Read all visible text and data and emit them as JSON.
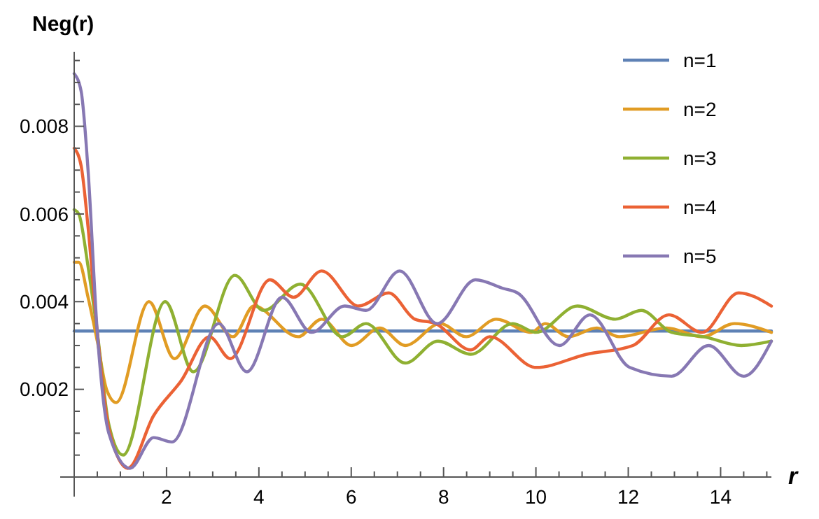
{
  "chart_data": {
    "type": "line",
    "ylabel": "Neg(r)",
    "xlabel": "r",
    "legend": "top right",
    "line_style": "solid",
    "xlim": [
      0,
      15.1
    ],
    "ylim": [
      0,
      0.0097
    ],
    "xticks": [
      {
        "value": 0.5,
        "label": null
      },
      {
        "value": 1,
        "label": null
      },
      {
        "value": 1.5,
        "label": null
      },
      2,
      {
        "value": 2.5,
        "label": null
      },
      {
        "value": 3,
        "label": null
      },
      {
        "value": 3.5,
        "label": null
      },
      4,
      {
        "value": 4.5,
        "label": null
      },
      {
        "value": 5,
        "label": null
      },
      {
        "value": 5.5,
        "label": null
      },
      6,
      {
        "value": 6.5,
        "label": null
      },
      {
        "value": 7,
        "label": null
      },
      {
        "value": 7.5,
        "label": null
      },
      8,
      {
        "value": 8.5,
        "label": null
      },
      {
        "value": 9,
        "label": null
      },
      {
        "value": 9.5,
        "label": null
      },
      10,
      {
        "value": 10.5,
        "label": null
      },
      {
        "value": 11,
        "label": null
      },
      {
        "value": 11.5,
        "label": null
      },
      12,
      {
        "value": 12.5,
        "label": null
      },
      {
        "value": 13,
        "label": null
      },
      {
        "value": 13.5,
        "label": null
      },
      14,
      {
        "value": 14.5,
        "label": null
      },
      {
        "value": 15,
        "label": null
      }
    ],
    "yticks": [
      {
        "value": 0.0005,
        "label": null
      },
      {
        "value": 0.001,
        "label": null
      },
      {
        "value": 0.0015,
        "label": null
      },
      0.002,
      {
        "value": 0.0025,
        "label": null
      },
      {
        "value": 0.003,
        "label": null
      },
      {
        "value": 0.0035,
        "label": null
      },
      0.004,
      {
        "value": 0.0045,
        "label": null
      },
      {
        "value": 0.005,
        "label": null
      },
      {
        "value": 0.0055,
        "label": null
      },
      0.006,
      {
        "value": 0.0065,
        "label": null
      },
      {
        "value": 0.007,
        "label": null
      },
      {
        "value": 0.0075,
        "label": null
      },
      0.008,
      {
        "value": 0.0085,
        "label": null
      },
      {
        "value": 0.009,
        "label": null
      },
      {
        "value": 0.0095,
        "label": null
      }
    ],
    "series": [
      {
        "name": "n=1",
        "color": "#5e81b5",
        "x": [
          0,
          15.1
        ],
        "values": [
          0.00333,
          0.00333
        ]
      },
      {
        "name": "n=2",
        "color": "#e19c24",
        "x": [
          0,
          0.1,
          0.3,
          0.5,
          0.7,
          0.91,
          1.62,
          2.17,
          2.83,
          3.44,
          3.89,
          4.85,
          5.36,
          6.01,
          6.62,
          7.17,
          7.93,
          8.49,
          9.14,
          9.9,
          10.2,
          10.7,
          11.32,
          11.8,
          12.83,
          13.6,
          14.3,
          15.1
        ],
        "values": [
          0.0049,
          0.0049,
          0.0041,
          0.0031,
          0.002,
          0.0017,
          0.004,
          0.0027,
          0.0039,
          0.0032,
          0.0039,
          0.0032,
          0.0036,
          0.003,
          0.0034,
          0.003,
          0.0035,
          0.0032,
          0.0036,
          0.0033,
          0.0035,
          0.0032,
          0.0034,
          0.0032,
          0.0034,
          0.0032,
          0.0035,
          0.0033
        ]
      },
      {
        "name": "n=3",
        "color": "#8fb032",
        "x": [
          0,
          0.1,
          0.3,
          0.5,
          0.75,
          1.06,
          1.97,
          2.58,
          3.48,
          4.1,
          4.9,
          5.81,
          6.32,
          7.17,
          7.88,
          8.59,
          9.5,
          10.0,
          10.9,
          11.72,
          12.28,
          12.94,
          13.63,
          14.45,
          15.1
        ],
        "values": [
          0.0061,
          0.006,
          0.0048,
          0.0033,
          0.0012,
          0.0005,
          0.004,
          0.0024,
          0.0046,
          0.0038,
          0.0044,
          0.0032,
          0.0035,
          0.0026,
          0.0031,
          0.0028,
          0.0035,
          0.0033,
          0.0039,
          0.0036,
          0.0038,
          0.0033,
          0.0032,
          0.003,
          0.0031
        ]
      },
      {
        "name": "n=4",
        "color": "#eb6235",
        "x": [
          0,
          0.15,
          0.3,
          0.5,
          0.75,
          1.16,
          1.72,
          2.32,
          2.93,
          3.38,
          4.24,
          4.75,
          5.36,
          6.16,
          6.81,
          7.38,
          7.83,
          8.59,
          9.0,
          10.0,
          11.1,
          12.1,
          12.88,
          13.6,
          14.39,
          15.1
        ],
        "values": [
          0.0075,
          0.0071,
          0.0057,
          0.0033,
          0.0011,
          0.0002,
          0.0014,
          0.0022,
          0.0032,
          0.0027,
          0.0045,
          0.0041,
          0.0047,
          0.0039,
          0.0042,
          0.0036,
          0.0035,
          0.0029,
          0.0032,
          0.0025,
          0.0028,
          0.003,
          0.0037,
          0.0033,
          0.0042,
          0.0039
        ]
      },
      {
        "name": "n=5",
        "color": "#8778b3",
        "x": [
          0,
          0.15,
          0.3,
          0.5,
          0.75,
          1.21,
          1.72,
          2.12,
          3.13,
          3.74,
          4.5,
          5.14,
          5.86,
          6.32,
          7.05,
          7.86,
          8.69,
          9.3,
          9.6,
          10.51,
          11.17,
          12.03,
          12.94,
          13.74,
          14.5,
          15.1
        ],
        "values": [
          0.0092,
          0.0088,
          0.007,
          0.0033,
          0.001,
          0.0002,
          0.0009,
          0.0008,
          0.0035,
          0.0024,
          0.0041,
          0.0033,
          0.0039,
          0.0038,
          0.0047,
          0.0035,
          0.0045,
          0.0043,
          0.0042,
          0.003,
          0.0037,
          0.0025,
          0.0023,
          0.003,
          0.0023,
          0.0031
        ]
      }
    ]
  }
}
